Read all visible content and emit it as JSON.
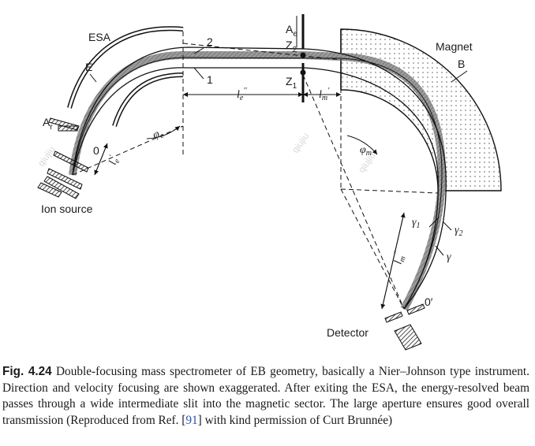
{
  "diagram": {
    "labels": {
      "esa": "ESA",
      "e": "E",
      "ar": "A",
      "ar_sub": "r",
      "zero": "0",
      "ion_source": "Ion source",
      "le": "l",
      "le_sub": "e",
      "le_sup": "′",
      "phi_e": "φ",
      "phi_e_sub": "e",
      "two": "2",
      "one": "1",
      "le2": "l",
      "le2_sub": "e",
      "le2_sup": "′′",
      "ae": "A",
      "ae_sub": "e",
      "z2": "Z",
      "z2_sub": "2",
      "z1": "Z",
      "z1_sub": "1",
      "lm": "l",
      "lm_sub": "m",
      "lm_sup": "′",
      "magnet": "Magnet",
      "b": "B",
      "phi_m": "φ",
      "phi_m_sub": "m",
      "gamma1": "γ",
      "gamma1_sub": "1",
      "gamma2": "γ",
      "gamma2_sub": "2",
      "gamma": "γ",
      "lm2": "l",
      "lm2_sub": "m",
      "lm2_sup": "′′",
      "zero_prime": "0′",
      "detector": "Detector"
    },
    "watermark": "qiujiu"
  },
  "caption": {
    "fig_number": "Fig. 4.24",
    "text_before_ref": "Double-focusing mass spectrometer of EB geometry, basically a Nier–Johnson type instrument. Direction and velocity focusing are shown exaggerated. After exiting the ESA, the energy-resolved beam passes through a wide intermediate slit into the magnetic sector. The large aperture ensures good overall transmission (Reproduced from Ref. [",
    "ref": "91",
    "text_after_ref": "] with kind permission of Curt Brunnée)"
  }
}
